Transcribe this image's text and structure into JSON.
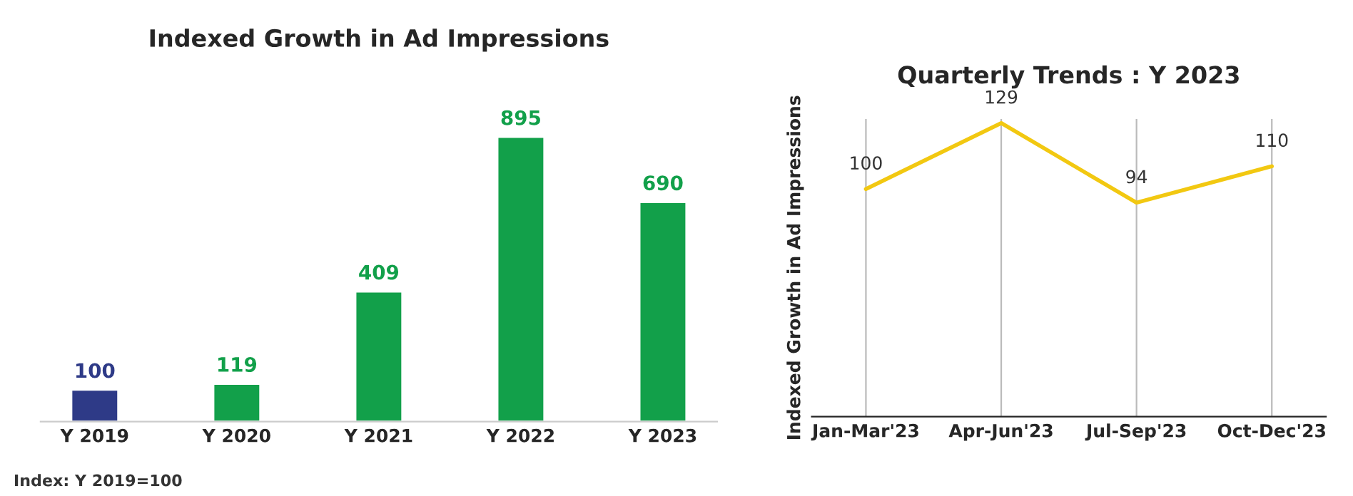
{
  "chart_data": [
    {
      "type": "bar",
      "title": "Indexed Growth in Ad Impressions",
      "categories": [
        "Y 2019",
        "Y 2020",
        "Y 2021",
        "Y 2022",
        "Y 2023"
      ],
      "values": [
        100,
        119,
        409,
        895,
        690
      ],
      "colors": [
        "#2e3a87",
        "#12a04a",
        "#12a04a",
        "#12a04a",
        "#12a04a"
      ],
      "data_labels": true,
      "grid": false,
      "legend": false,
      "annotations": [
        "Index: Y 2019=100"
      ]
    },
    {
      "type": "line",
      "title": "Quarterly Trends : Y 2023",
      "ylabel": "Indexed Growth in Ad Impressions",
      "categories": [
        "Jan-Mar'23",
        "Apr-Jun'23",
        "Jul-Sep'23",
        "Oct-Dec'23"
      ],
      "series": [
        {
          "color": "#f2c811",
          "values": [
            100,
            129,
            94,
            110
          ]
        }
      ],
      "data_labels": true,
      "grid": "x",
      "legend": false,
      "marker": "none",
      "line_style": "solid"
    }
  ]
}
